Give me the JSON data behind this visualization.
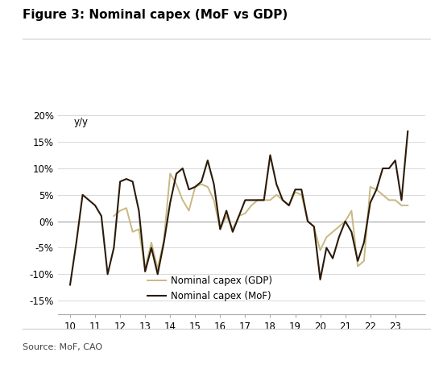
{
  "title": "Figure 3: Nominal capex (MoF vs GDP)",
  "ylabel_text": "y/y",
  "source": "Source: MoF, CAO",
  "xlim": [
    9.5,
    24.2
  ],
  "ylim": [
    -0.175,
    0.225
  ],
  "yticks": [
    -0.15,
    -0.1,
    -0.05,
    0.0,
    0.05,
    0.1,
    0.15,
    0.2
  ],
  "xticks": [
    10,
    11,
    12,
    13,
    14,
    15,
    16,
    17,
    18,
    19,
    20,
    21,
    22,
    23
  ],
  "gdp_color": "#C8B882",
  "mof_color": "#2B1A0A",
  "legend_gdp": "Nominal capex (GDP)",
  "legend_mof": "Nominal capex (MoF)",
  "x_mof": [
    10.0,
    10.25,
    10.5,
    10.75,
    11.0,
    11.25,
    11.5,
    11.75,
    12.0,
    12.25,
    12.5,
    12.75,
    13.0,
    13.25,
    13.5,
    13.75,
    14.0,
    14.25,
    14.5,
    14.75,
    15.0,
    15.25,
    15.5,
    15.75,
    16.0,
    16.25,
    16.5,
    16.75,
    17.0,
    17.25,
    17.5,
    17.75,
    18.0,
    18.25,
    18.5,
    18.75,
    19.0,
    19.25,
    19.5,
    19.75,
    20.0,
    20.25,
    20.5,
    20.75,
    21.0,
    21.25,
    21.5,
    21.75,
    22.0,
    22.25,
    22.5,
    22.75,
    23.0,
    23.25,
    23.5
  ],
  "y_mof": [
    -0.12,
    -0.04,
    0.05,
    0.04,
    0.03,
    0.01,
    -0.1,
    -0.05,
    0.075,
    0.08,
    0.075,
    0.02,
    -0.095,
    -0.05,
    -0.1,
    -0.04,
    0.035,
    0.09,
    0.1,
    0.06,
    0.065,
    0.075,
    0.115,
    0.07,
    -0.015,
    0.02,
    -0.02,
    0.01,
    0.04,
    0.04,
    0.04,
    0.04,
    0.125,
    0.07,
    0.04,
    0.03,
    0.06,
    0.06,
    0.0,
    -0.01,
    -0.11,
    -0.05,
    -0.07,
    -0.03,
    0.0,
    -0.02,
    -0.075,
    -0.04,
    0.035,
    0.06,
    0.1,
    0.1,
    0.115,
    0.04,
    0.17
  ],
  "x_gdp": [
    11.75,
    12.0,
    12.25,
    12.5,
    12.75,
    13.0,
    13.25,
    13.5,
    13.75,
    14.0,
    14.25,
    14.5,
    14.75,
    15.0,
    15.25,
    15.5,
    15.75,
    16.0,
    16.25,
    16.5,
    16.75,
    17.0,
    17.25,
    17.5,
    17.75,
    18.0,
    18.25,
    18.5,
    18.75,
    19.0,
    19.25,
    19.5,
    19.75,
    20.0,
    20.25,
    20.5,
    20.75,
    21.0,
    21.25,
    21.5,
    21.75,
    22.0,
    22.25,
    22.5,
    22.75,
    23.0,
    23.25,
    23.5
  ],
  "y_gdp": [
    0.01,
    0.02,
    0.025,
    -0.02,
    -0.015,
    -0.09,
    -0.04,
    -0.09,
    -0.035,
    0.09,
    0.07,
    0.04,
    0.02,
    0.065,
    0.07,
    0.065,
    0.04,
    -0.015,
    0.01,
    -0.015,
    0.01,
    0.015,
    0.03,
    0.04,
    0.04,
    0.04,
    0.05,
    0.04,
    0.03,
    0.055,
    0.05,
    0.0,
    -0.01,
    -0.055,
    -0.03,
    -0.02,
    -0.01,
    0.0,
    0.02,
    -0.085,
    -0.075,
    0.065,
    0.06,
    0.05,
    0.04,
    0.04,
    0.03,
    0.03
  ]
}
